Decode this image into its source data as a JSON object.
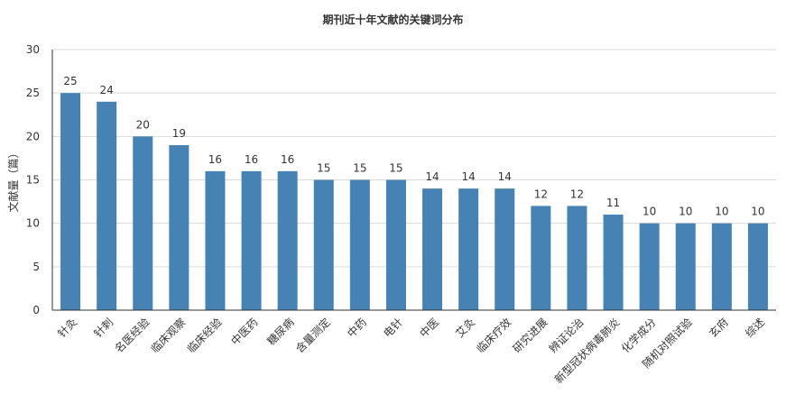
{
  "chart_data": {
    "type": "bar",
    "title": "期刊近十年文献的关键词分布",
    "ylabel": "文献量（篇）",
    "xlabel": "",
    "ylim": [
      0,
      30
    ],
    "yticks": [
      0,
      5,
      10,
      15,
      20,
      25,
      30
    ],
    "grid": true,
    "legend": "none",
    "categories": [
      "针灸",
      "针刺",
      "名医经验",
      "临床观察",
      "临床经验",
      "中医药",
      "糖尿病",
      "含量测定",
      "中药",
      "电针",
      "中医",
      "艾灸",
      "临床疗效",
      "研究进展",
      "辨证论治",
      "新型冠状病毒肺炎",
      "化学成分",
      "随机对照试验",
      "玄府",
      "综述"
    ],
    "series": [
      {
        "values": [
          25,
          24,
          20,
          19,
          16,
          16,
          16,
          15,
          15,
          15,
          14,
          14,
          14,
          12,
          12,
          11,
          10,
          10,
          10,
          10
        ]
      }
    ],
    "colors": {
      "bar": "#4682b4",
      "grid": "#d9d9d9",
      "axis": "#333333",
      "text": "#333333"
    }
  }
}
